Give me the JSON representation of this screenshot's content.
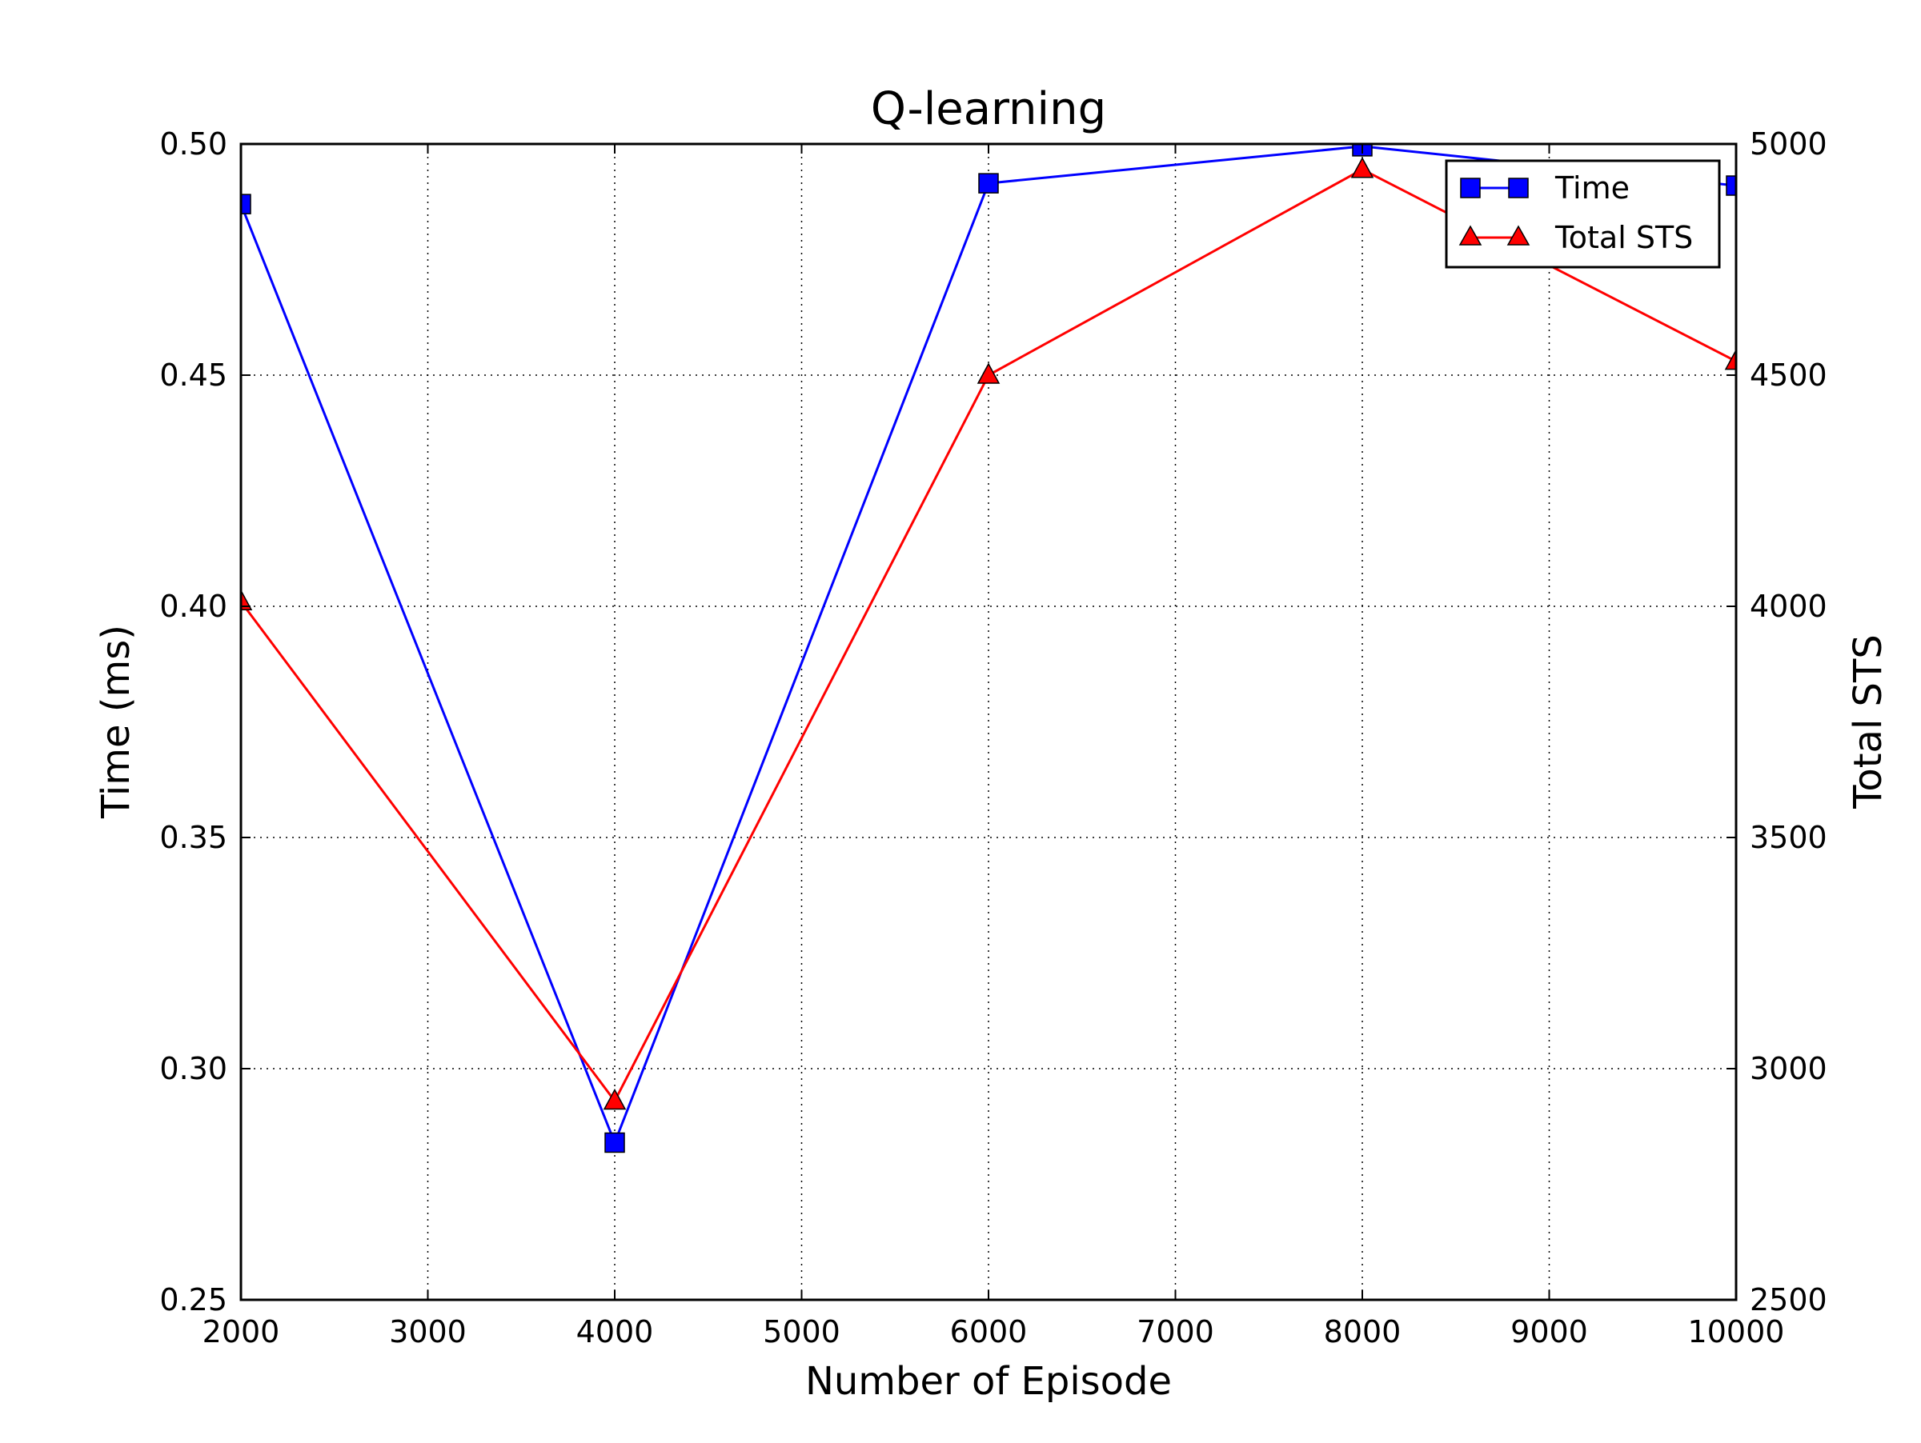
{
  "chart_data": {
    "type": "line",
    "title": "Q-learning",
    "xlabel": "Number of Episode",
    "ylabel": "Time (ms)",
    "y2label": "Total STS",
    "x": [
      2000,
      4000,
      6000,
      8000,
      10000
    ],
    "xlim": [
      2000,
      10000
    ],
    "ylim": [
      0.25,
      0.5
    ],
    "y2lim": [
      2500,
      5000
    ],
    "xticks": [
      "2000",
      "3000",
      "4000",
      "5000",
      "6000",
      "7000",
      "8000",
      "9000",
      "10000"
    ],
    "yticks": [
      "0.25",
      "0.30",
      "0.35",
      "0.40",
      "0.45",
      "0.50"
    ],
    "y2ticks": [
      "2500",
      "3000",
      "3500",
      "4000",
      "4500",
      "5000"
    ],
    "grid": true,
    "legend_position": "top-right",
    "series": [
      {
        "name": "Time",
        "axis": "left",
        "marker": "square",
        "color": "#0000ff",
        "values": [
          0.487,
          0.284,
          0.4915,
          0.4995,
          0.491
        ]
      },
      {
        "name": "Total STS",
        "axis": "right",
        "marker": "triangle",
        "color": "#ff0000",
        "values": [
          4010,
          2930,
          4500,
          4945,
          4530
        ]
      }
    ]
  }
}
